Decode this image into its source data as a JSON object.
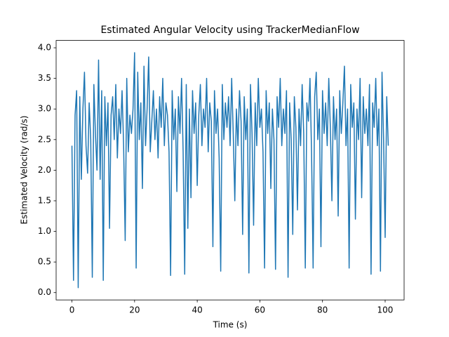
{
  "chart_data": {
    "type": "line",
    "title": "Estimated Angular Velocity using TrackerMedianFlow",
    "xlabel": "Time (s)",
    "ylabel": "Estimated Velocity (rad/s)",
    "xlim": [
      -5.05,
      106.05
    ],
    "ylim": [
      -0.12,
      4.12
    ],
    "xticks": [
      0,
      20,
      40,
      60,
      80,
      100
    ],
    "yticks": [
      {
        "value": 0,
        "label": "0.0"
      },
      0.5,
      {
        "value": 1,
        "label": "1.0"
      },
      1.5,
      {
        "value": 2,
        "label": "2.0"
      },
      2.5,
      {
        "value": 3,
        "label": "3.0"
      },
      3.5,
      {
        "value": 4,
        "label": "4.0"
      }
    ],
    "color": "#1f77b4",
    "x": [
      0,
      0.5,
      1,
      1.5,
      2,
      2.5,
      3,
      3.5,
      4,
      4.5,
      5,
      5.5,
      6,
      6.5,
      7,
      7.5,
      8,
      8.5,
      9,
      9.5,
      10,
      10.5,
      11,
      11.5,
      12,
      12.5,
      13,
      13.5,
      14,
      14.5,
      15,
      15.5,
      16,
      16.5,
      17,
      17.5,
      18,
      18.5,
      19,
      19.5,
      20,
      20.5,
      21,
      21.5,
      22,
      22.5,
      23,
      23.5,
      24,
      24.5,
      25,
      25.5,
      26,
      26.5,
      27,
      27.5,
      28,
      28.5,
      29,
      29.5,
      30,
      30.5,
      31,
      31.5,
      32,
      32.5,
      33,
      33.5,
      34,
      34.5,
      35,
      35.5,
      36,
      36.5,
      37,
      37.5,
      38,
      38.5,
      39,
      39.5,
      40,
      40.5,
      41,
      41.5,
      42,
      42.5,
      43,
      43.5,
      44,
      44.5,
      45,
      45.5,
      46,
      46.5,
      47,
      47.5,
      48,
      48.5,
      49,
      49.5,
      50,
      50.5,
      51,
      51.5,
      52,
      52.5,
      53,
      53.5,
      54,
      54.5,
      55,
      55.5,
      56,
      56.5,
      57,
      57.5,
      58,
      58.5,
      59,
      59.5,
      60,
      60.5,
      61,
      61.5,
      62,
      62.5,
      63,
      63.5,
      64,
      64.5,
      65,
      65.5,
      66,
      66.5,
      67,
      67.5,
      68,
      68.5,
      69,
      69.5,
      70,
      70.5,
      71,
      71.5,
      72,
      72.5,
      73,
      73.5,
      74,
      74.5,
      75,
      75.5,
      76,
      76.5,
      77,
      77.5,
      78,
      78.5,
      79,
      79.5,
      80,
      80.5,
      81,
      81.5,
      82,
      82.5,
      83,
      83.5,
      84,
      84.5,
      85,
      85.5,
      86,
      86.5,
      87,
      87.5,
      88,
      88.5,
      89,
      89.5,
      90,
      90.5,
      91,
      91.5,
      92,
      92.5,
      93,
      93.5,
      94,
      94.5,
      95,
      95.5,
      96,
      96.5,
      97,
      97.5,
      98,
      98.5,
      99,
      99.5,
      100,
      100.5,
      101
    ],
    "values": [
      2.4,
      0.2,
      2.9,
      3.3,
      0.08,
      3.2,
      1.85,
      3.0,
      3.6,
      2.4,
      1.95,
      3.1,
      2.5,
      0.25,
      3.4,
      2.6,
      2.0,
      3.8,
      1.85,
      3.3,
      0.2,
      3.2,
      2.4,
      3.1,
      1.05,
      2.9,
      3.2,
      2.5,
      3.4,
      2.2,
      3.0,
      2.6,
      3.3,
      2.4,
      0.85,
      3.5,
      2.3,
      2.9,
      2.6,
      3.0,
      3.92,
      0.4,
      3.6,
      2.5,
      3.1,
      1.7,
      3.7,
      2.4,
      3.0,
      3.85,
      2.3,
      2.8,
      3.3,
      2.5,
      3.0,
      2.2,
      3.2,
      2.7,
      3.5,
      2.4,
      3.1,
      2.9,
      2.3,
      0.28,
      3.3,
      2.5,
      3.0,
      1.65,
      3.2,
      2.6,
      3.5,
      2.3,
      0.3,
      3.4,
      1.05,
      3.0,
      1.55,
      3.3,
      2.6,
      3.1,
      1.75,
      2.9,
      3.4,
      2.4,
      3.0,
      2.7,
      3.5,
      2.3,
      3.1,
      2.8,
      0.75,
      3.3,
      2.6,
      3.0,
      2.2,
      0.35,
      3.4,
      2.5,
      3.1,
      2.7,
      3.2,
      2.4,
      3.5,
      2.6,
      1.5,
      3.0,
      2.4,
      3.3,
      2.8,
      0.95,
      3.2,
      2.5,
      3.0,
      0.32,
      3.4,
      2.6,
      1.1,
      3.1,
      2.4,
      3.5,
      2.7,
      3.0,
      2.3,
      0.4,
      3.3,
      2.6,
      3.1,
      1.7,
      3.0,
      2.5,
      0.38,
      3.2,
      2.7,
      3.5,
      2.4,
      3.0,
      2.6,
      3.3,
      0.25,
      3.1,
      2.5,
      0.95,
      3.2,
      2.7,
      1.35,
      3.0,
      2.4,
      3.4,
      2.6,
      0.4,
      3.1,
      2.8,
      3.5,
      2.3,
      0.4,
      3.2,
      3.6,
      2.5,
      3.0,
      0.75,
      3.3,
      2.6,
      3.1,
      2.4,
      3.5,
      2.7,
      1.5,
      3.2,
      2.5,
      3.0,
      1.25,
      3.3,
      2.6,
      3.1,
      3.7,
      2.4,
      3.0,
      0.4,
      3.4,
      2.7,
      3.1,
      1.2,
      3.0,
      2.5,
      3.5,
      1.55,
      3.2,
      2.6,
      3.0,
      2.4,
      3.4,
      0.3,
      3.1,
      2.7,
      3.5,
      2.4,
      3.0,
      0.35,
      3.6,
      2.5,
      0.9,
      3.2,
      2.4
    ]
  }
}
